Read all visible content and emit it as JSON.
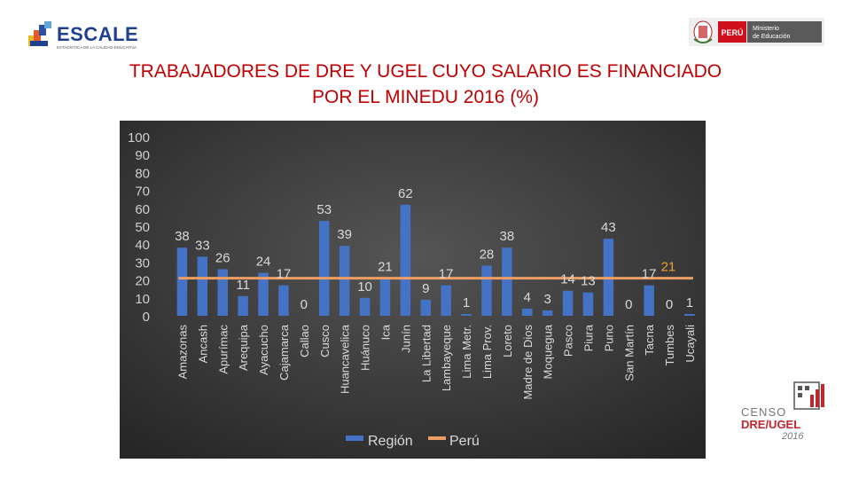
{
  "header": {
    "escale_logo": {
      "name": "ESCALE",
      "tagline": "ESTADÍSTICA DE LA CALIDAD EDUCATIVA"
    },
    "minedu_logo": {
      "country": "PERÚ",
      "line1": "Ministerio",
      "line2": "de Educación"
    }
  },
  "title_lines": [
    "TRABAJADORES DE DRE Y UGEL CUYO SALARIO ES FINANCIADO",
    "POR EL MINEDU 2016 (%)"
  ],
  "censo_logo": {
    "line1": "CENSO",
    "line2": "DRE/UGEL",
    "line3": "2016"
  },
  "colors": {
    "bar": "#4472c4",
    "line": "#ed9e64",
    "background": "#404040",
    "title": "#c00000"
  },
  "chart_data": {
    "type": "bar",
    "title": "TRABAJADORES DE DRE Y UGEL CUYO SALARIO ES FINANCIADO POR EL MINEDU 2016 (%)",
    "categories": [
      "Amazonas",
      "Ancash",
      "Apurímac",
      "Arequipa",
      "Ayacucho",
      "Cajamarca",
      "Callao",
      "Cusco",
      "Huancavelica",
      "Huánuco",
      "Ica",
      "Junín",
      "La Libertad",
      "Lambayeque",
      "Lima Metr.",
      "Lima Prov.",
      "Loreto",
      "Madre de Dios",
      "Moquegua",
      "Pasco",
      "Piura",
      "Puno",
      "San Martín",
      "Tacna",
      "Tumbes",
      "Ucayali"
    ],
    "series": [
      {
        "name": "Región",
        "type": "bar",
        "values": [
          38,
          33,
          26,
          11,
          24,
          17,
          0,
          53,
          39,
          10,
          21,
          62,
          9,
          17,
          1,
          28,
          38,
          4,
          3,
          14,
          13,
          43,
          0,
          17,
          0,
          1
        ]
      },
      {
        "name": "Perú",
        "type": "line",
        "value": 21
      }
    ],
    "yticks": [
      0,
      10,
      20,
      30,
      40,
      50,
      60,
      70,
      80,
      90,
      100
    ],
    "ylim": [
      0,
      100
    ],
    "legend": [
      "Región",
      "Perú"
    ],
    "legend_position": "bottom",
    "peru_label": "21"
  }
}
